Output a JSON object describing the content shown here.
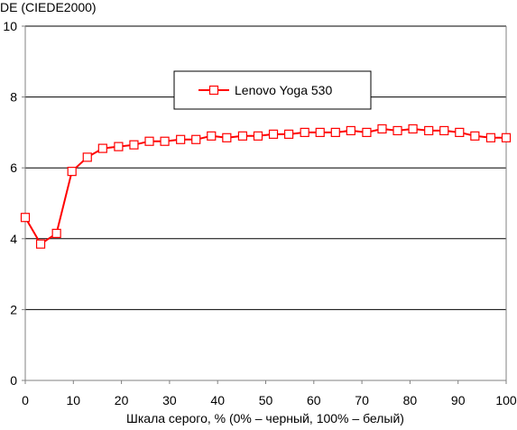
{
  "chart_data": {
    "type": "line",
    "ylabel": "DE (CIEDE2000)",
    "xlabel": "Шкала серого, % (0% – черный, 100% – белый)",
    "xlim": [
      0,
      100
    ],
    "ylim": [
      0,
      10
    ],
    "xticks": [
      "0",
      "10",
      "20",
      "30",
      "40",
      "50",
      "60",
      "70",
      "80",
      "90",
      "100"
    ],
    "yticks": [
      "0",
      "2",
      "4",
      "6",
      "8",
      "10"
    ],
    "grid": "horizontal",
    "legend_position": "top-center",
    "series": [
      {
        "name": "Lenovo Yoga 530",
        "color": "#ff0000",
        "marker": "open-square",
        "x": [
          0,
          3.2,
          6.5,
          9.7,
          12.9,
          16.1,
          19.4,
          22.6,
          25.8,
          29.0,
          32.3,
          35.5,
          38.7,
          41.9,
          45.2,
          48.4,
          51.6,
          54.8,
          58.1,
          61.3,
          64.5,
          67.7,
          71.0,
          74.2,
          77.4,
          80.6,
          83.9,
          87.1,
          90.3,
          93.5,
          96.8,
          100
        ],
        "values": [
          4.6,
          3.85,
          4.15,
          5.9,
          6.3,
          6.55,
          6.6,
          6.65,
          6.75,
          6.75,
          6.8,
          6.8,
          6.9,
          6.85,
          6.9,
          6.9,
          6.95,
          6.95,
          7.0,
          7.0,
          7.0,
          7.05,
          7.0,
          7.1,
          7.05,
          7.1,
          7.05,
          7.05,
          7.0,
          6.9,
          6.85,
          6.85
        ]
      }
    ]
  }
}
